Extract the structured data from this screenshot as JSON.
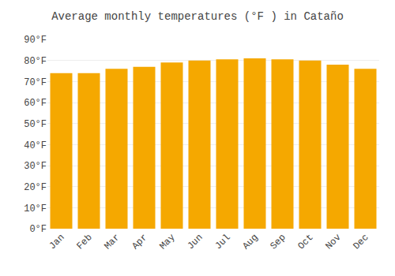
{
  "chart_data": {
    "type": "bar",
    "title": "Average monthly temperatures (°F ) in Cataño",
    "categories": [
      "Jan",
      "Feb",
      "Mar",
      "Apr",
      "May",
      "Jun",
      "Jul",
      "Aug",
      "Sep",
      "Oct",
      "Nov",
      "Dec"
    ],
    "values": [
      74,
      74,
      76,
      77,
      79,
      80,
      80.5,
      81,
      80.5,
      80,
      78,
      76
    ],
    "color": "#F5A800",
    "ylim": [
      0,
      90
    ],
    "yticks": [
      {
        "value": 0,
        "label": "0°F"
      },
      {
        "value": 10,
        "label": "10°F"
      },
      {
        "value": 20,
        "label": "20°F"
      },
      {
        "value": 30,
        "label": "30°F"
      },
      {
        "value": 40,
        "label": "40°F"
      },
      {
        "value": 50,
        "label": "50°F"
      },
      {
        "value": 60,
        "label": "60°F"
      },
      {
        "value": 70,
        "label": "70°F"
      },
      {
        "value": 80,
        "label": "80°F"
      },
      {
        "value": 90,
        "label": "90°F"
      }
    ],
    "grid": true
  }
}
